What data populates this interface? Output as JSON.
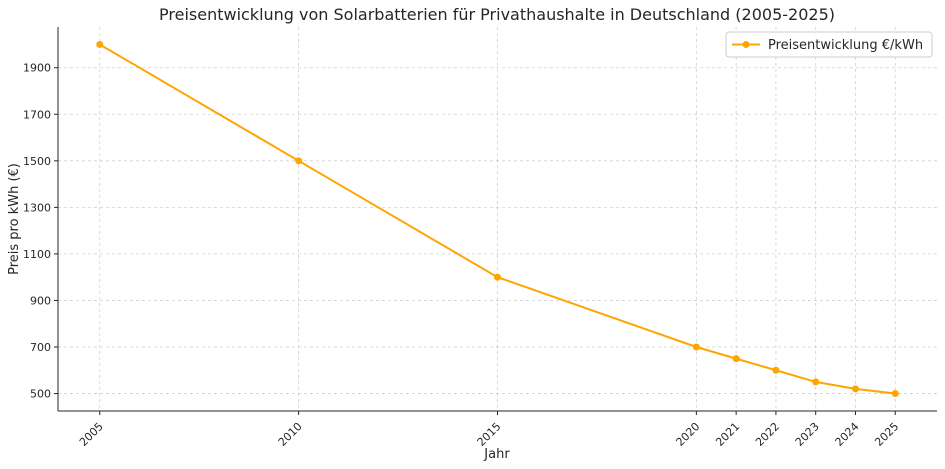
{
  "chart_data": {
    "type": "line",
    "title": "Preisentwicklung von Solarbatterien für Privathaushalte in Deutschland (2005-2025)",
    "xlabel": "Jahr",
    "ylabel": "Preis pro kWh (€)",
    "x": [
      2005,
      2010,
      2015,
      2020,
      2021,
      2022,
      2023,
      2024,
      2025
    ],
    "x_tick_labels": [
      "2005",
      "2010",
      "2015",
      "2020",
      "2021",
      "2022",
      "2023",
      "2024",
      "2025"
    ],
    "series": [
      {
        "name": "Preisentwicklung €/kWh",
        "values": [
          2000,
          1500,
          1000,
          700,
          650,
          600,
          550,
          520,
          500
        ],
        "color": "#FFA500"
      }
    ],
    "y_ticks": [
      500,
      700,
      900,
      1100,
      1300,
      1500,
      1700,
      1900
    ],
    "xlim": [
      2003.95,
      2026.05
    ],
    "ylim": [
      425,
      2075
    ],
    "grid": true,
    "legend_position": "top-right"
  }
}
